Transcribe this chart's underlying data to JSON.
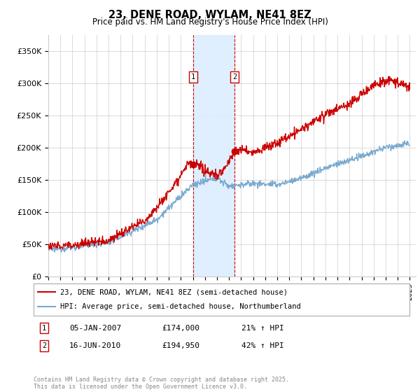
{
  "title": "23, DENE ROAD, WYLAM, NE41 8EZ",
  "subtitle": "Price paid vs. HM Land Registry's House Price Index (HPI)",
  "ylabel_ticks": [
    "£0",
    "£50K",
    "£100K",
    "£150K",
    "£200K",
    "£250K",
    "£300K",
    "£350K"
  ],
  "ytick_values": [
    0,
    50000,
    100000,
    150000,
    200000,
    250000,
    300000,
    350000
  ],
  "ylim": [
    0,
    375000
  ],
  "xlim_start": 1995.0,
  "xlim_end": 2025.5,
  "marker1_x": 2007.02,
  "marker2_x": 2010.46,
  "marker1_price": 174000,
  "marker2_price": 194950,
  "red_color": "#cc0000",
  "blue_color": "#7aaad0",
  "shade_color": "#ddeeff",
  "legend_label_red": "23, DENE ROAD, WYLAM, NE41 8EZ (semi-detached house)",
  "legend_label_blue": "HPI: Average price, semi-detached house, Northumberland",
  "table_rows": [
    {
      "num": "1",
      "date": "05-JAN-2007",
      "price": "£174,000",
      "change": "21% ↑ HPI"
    },
    {
      "num": "2",
      "date": "16-JUN-2010",
      "price": "£194,950",
      "change": "42% ↑ HPI"
    }
  ],
  "footer": "Contains HM Land Registry data © Crown copyright and database right 2025.\nThis data is licensed under the Open Government Licence v3.0.",
  "background_color": "#ffffff",
  "grid_color": "#cccccc"
}
